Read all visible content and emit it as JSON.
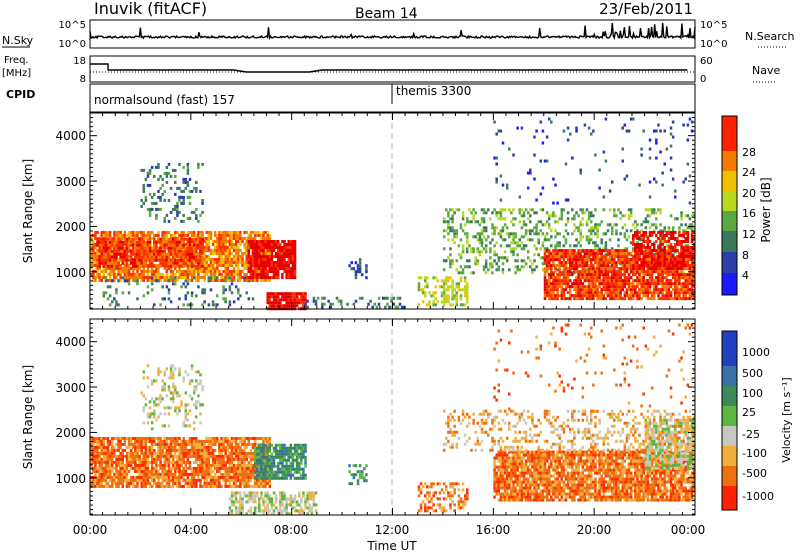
{
  "header": {
    "station": "Inuvik (fitACF)",
    "beam": "Beam 14",
    "date": "23/Feb/2011"
  },
  "status_strip": {
    "nsky_label": "N.Sky",
    "nsky_ticks": [
      "10^5",
      "10^0"
    ],
    "nsearch_label": "N.Search",
    "freq_label_1": "Freq.",
    "freq_label_2": "[MHz]",
    "freq_ticks": [
      "18",
      "8"
    ],
    "nave_ticks": [
      "60",
      "0"
    ],
    "nave_label": "Nave",
    "cpid_label": "CPID",
    "cpid_segments": [
      {
        "label": "normalsound (fast) 157",
        "start_hour": 0
      },
      {
        "label": "themis 3300",
        "start_hour": 12
      }
    ]
  },
  "axes": {
    "ylabel": "Slant Range [km]",
    "yticks": [
      "1000",
      "2000",
      "3000",
      "4000"
    ],
    "xlabel": "Time UT",
    "xticks": [
      "00:00",
      "04:00",
      "08:00",
      "12:00",
      "16:00",
      "20:00",
      "00:00"
    ]
  },
  "chart_data": [
    {
      "type": "heatmap",
      "name": "power",
      "xlim": [
        0,
        24
      ],
      "ylim": [
        180,
        4500
      ],
      "colorbar_label": "Power [dB]",
      "colorbar_ticks": [
        "4",
        "8",
        "12",
        "16",
        "20",
        "24",
        "28"
      ],
      "colors": [
        "#1a1aff",
        "#2a3fa8",
        "#3a7a5a",
        "#5aa840",
        "#b8d820",
        "#f0c000",
        "#f57a00",
        "#ff3000",
        "#e60000"
      ],
      "regions": [
        {
          "x0": 0.0,
          "x1": 7.2,
          "y0": 800,
          "y1": 1900,
          "level": 6,
          "density": 0.8
        },
        {
          "x0": 0.3,
          "x1": 4.5,
          "y0": 1150,
          "y1": 1750,
          "level": 7,
          "density": 0.75
        },
        {
          "x0": 6.3,
          "x1": 8.2,
          "y0": 900,
          "y1": 1700,
          "level": 8,
          "density": 0.85
        },
        {
          "x0": 7.0,
          "x1": 8.6,
          "y0": 200,
          "y1": 550,
          "level": 8,
          "density": 0.9
        },
        {
          "x0": 0.5,
          "x1": 6.5,
          "y0": 250,
          "y1": 900,
          "level": 2,
          "density": 0.15
        },
        {
          "x0": 2.0,
          "x1": 4.5,
          "y0": 2100,
          "y1": 3400,
          "level": 2,
          "density": 0.2
        },
        {
          "x0": 8.5,
          "x1": 12.5,
          "y0": 200,
          "y1": 450,
          "level": 2,
          "density": 0.25
        },
        {
          "x0": 10.3,
          "x1": 11.0,
          "y0": 900,
          "y1": 1300,
          "level": 1,
          "density": 0.4
        },
        {
          "x0": 13.0,
          "x1": 15.0,
          "y0": 250,
          "y1": 900,
          "level": 4,
          "density": 0.4
        },
        {
          "x0": 14.0,
          "x1": 24.0,
          "y0": 1000,
          "y1": 2400,
          "level": 3,
          "density": 0.3
        },
        {
          "x0": 18.0,
          "x1": 24.0,
          "y0": 400,
          "y1": 1500,
          "level": 7,
          "density": 0.85
        },
        {
          "x0": 21.5,
          "x1": 24.0,
          "y0": 1100,
          "y1": 1900,
          "level": 8,
          "density": 0.6
        },
        {
          "x0": 16.0,
          "x1": 24.0,
          "y0": 2500,
          "y1": 4400,
          "level": 1,
          "density": 0.04
        }
      ]
    },
    {
      "type": "heatmap",
      "name": "velocity",
      "xlim": [
        0,
        24
      ],
      "ylim": [
        180,
        4500
      ],
      "colorbar_label": "Velocity [m s⁻¹]",
      "colorbar_ticks": [
        "1000",
        "500",
        "100",
        "25",
        "-25",
        "-100",
        "-500",
        "-1000"
      ],
      "colors": [
        "#2040c0",
        "#3a70a8",
        "#3a8a5a",
        "#5ab840",
        "#c8c8c0",
        "#f0b040",
        "#f07010",
        "#ff3000"
      ],
      "regions": [
        {
          "x0": 0.0,
          "x1": 7.2,
          "y0": 800,
          "y1": 1900,
          "level": 6,
          "density": 0.85
        },
        {
          "x0": 6.5,
          "x1": 8.6,
          "y0": 1000,
          "y1": 1750,
          "level": 2,
          "density": 0.8
        },
        {
          "x0": 5.5,
          "x1": 9.0,
          "y0": 200,
          "y1": 700,
          "level": 4,
          "density": 0.6
        },
        {
          "x0": 2.0,
          "x1": 4.5,
          "y0": 2100,
          "y1": 3500,
          "level": 4,
          "density": 0.25
        },
        {
          "x0": 10.3,
          "x1": 11.0,
          "y0": 900,
          "y1": 1300,
          "level": 2,
          "density": 0.4
        },
        {
          "x0": 13.0,
          "x1": 15.0,
          "y0": 250,
          "y1": 900,
          "level": 6,
          "density": 0.4
        },
        {
          "x0": 16.0,
          "x1": 24.0,
          "y0": 500,
          "y1": 1600,
          "level": 6,
          "density": 0.85
        },
        {
          "x0": 22.0,
          "x1": 24.0,
          "y0": 1200,
          "y1": 2300,
          "level": 4,
          "density": 0.7
        },
        {
          "x0": 14.0,
          "x1": 24.0,
          "y0": 1600,
          "y1": 2500,
          "level": 5,
          "density": 0.3
        },
        {
          "x0": 16.0,
          "x1": 24.0,
          "y0": 2500,
          "y1": 4400,
          "level": 6,
          "density": 0.04
        }
      ]
    }
  ]
}
